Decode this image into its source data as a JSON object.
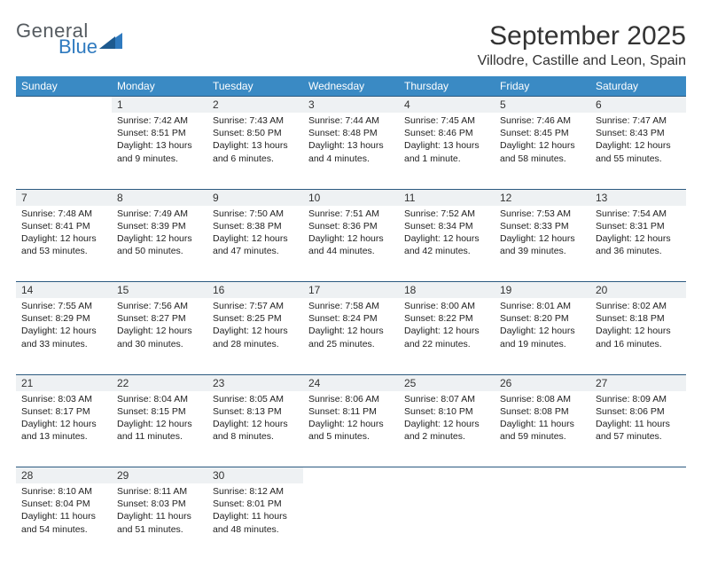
{
  "logo": {
    "text1": "General",
    "text2": "Blue"
  },
  "title": "September 2025",
  "location": "Villodre, Castille and Leon, Spain",
  "colors": {
    "header_bg": "#3a8ac4",
    "header_text": "#ffffff",
    "daynum_bg": "#eef1f3",
    "row_border": "#2c5a80",
    "logo_gray": "#555b60",
    "logo_blue": "#2f7abf",
    "text": "#222222",
    "background": "#ffffff"
  },
  "weekdays": [
    "Sunday",
    "Monday",
    "Tuesday",
    "Wednesday",
    "Thursday",
    "Friday",
    "Saturday"
  ],
  "weeks": [
    {
      "daynums": [
        "",
        "1",
        "2",
        "3",
        "4",
        "5",
        "6"
      ],
      "cells": [
        {
          "sunrise": "",
          "sunset": "",
          "daylight": ""
        },
        {
          "sunrise": "Sunrise: 7:42 AM",
          "sunset": "Sunset: 8:51 PM",
          "daylight": "Daylight: 13 hours and 9 minutes."
        },
        {
          "sunrise": "Sunrise: 7:43 AM",
          "sunset": "Sunset: 8:50 PM",
          "daylight": "Daylight: 13 hours and 6 minutes."
        },
        {
          "sunrise": "Sunrise: 7:44 AM",
          "sunset": "Sunset: 8:48 PM",
          "daylight": "Daylight: 13 hours and 4 minutes."
        },
        {
          "sunrise": "Sunrise: 7:45 AM",
          "sunset": "Sunset: 8:46 PM",
          "daylight": "Daylight: 13 hours and 1 minute."
        },
        {
          "sunrise": "Sunrise: 7:46 AM",
          "sunset": "Sunset: 8:45 PM",
          "daylight": "Daylight: 12 hours and 58 minutes."
        },
        {
          "sunrise": "Sunrise: 7:47 AM",
          "sunset": "Sunset: 8:43 PM",
          "daylight": "Daylight: 12 hours and 55 minutes."
        }
      ]
    },
    {
      "daynums": [
        "7",
        "8",
        "9",
        "10",
        "11",
        "12",
        "13"
      ],
      "cells": [
        {
          "sunrise": "Sunrise: 7:48 AM",
          "sunset": "Sunset: 8:41 PM",
          "daylight": "Daylight: 12 hours and 53 minutes."
        },
        {
          "sunrise": "Sunrise: 7:49 AM",
          "sunset": "Sunset: 8:39 PM",
          "daylight": "Daylight: 12 hours and 50 minutes."
        },
        {
          "sunrise": "Sunrise: 7:50 AM",
          "sunset": "Sunset: 8:38 PM",
          "daylight": "Daylight: 12 hours and 47 minutes."
        },
        {
          "sunrise": "Sunrise: 7:51 AM",
          "sunset": "Sunset: 8:36 PM",
          "daylight": "Daylight: 12 hours and 44 minutes."
        },
        {
          "sunrise": "Sunrise: 7:52 AM",
          "sunset": "Sunset: 8:34 PM",
          "daylight": "Daylight: 12 hours and 42 minutes."
        },
        {
          "sunrise": "Sunrise: 7:53 AM",
          "sunset": "Sunset: 8:33 PM",
          "daylight": "Daylight: 12 hours and 39 minutes."
        },
        {
          "sunrise": "Sunrise: 7:54 AM",
          "sunset": "Sunset: 8:31 PM",
          "daylight": "Daylight: 12 hours and 36 minutes."
        }
      ]
    },
    {
      "daynums": [
        "14",
        "15",
        "16",
        "17",
        "18",
        "19",
        "20"
      ],
      "cells": [
        {
          "sunrise": "Sunrise: 7:55 AM",
          "sunset": "Sunset: 8:29 PM",
          "daylight": "Daylight: 12 hours and 33 minutes."
        },
        {
          "sunrise": "Sunrise: 7:56 AM",
          "sunset": "Sunset: 8:27 PM",
          "daylight": "Daylight: 12 hours and 30 minutes."
        },
        {
          "sunrise": "Sunrise: 7:57 AM",
          "sunset": "Sunset: 8:25 PM",
          "daylight": "Daylight: 12 hours and 28 minutes."
        },
        {
          "sunrise": "Sunrise: 7:58 AM",
          "sunset": "Sunset: 8:24 PM",
          "daylight": "Daylight: 12 hours and 25 minutes."
        },
        {
          "sunrise": "Sunrise: 8:00 AM",
          "sunset": "Sunset: 8:22 PM",
          "daylight": "Daylight: 12 hours and 22 minutes."
        },
        {
          "sunrise": "Sunrise: 8:01 AM",
          "sunset": "Sunset: 8:20 PM",
          "daylight": "Daylight: 12 hours and 19 minutes."
        },
        {
          "sunrise": "Sunrise: 8:02 AM",
          "sunset": "Sunset: 8:18 PM",
          "daylight": "Daylight: 12 hours and 16 minutes."
        }
      ]
    },
    {
      "daynums": [
        "21",
        "22",
        "23",
        "24",
        "25",
        "26",
        "27"
      ],
      "cells": [
        {
          "sunrise": "Sunrise: 8:03 AM",
          "sunset": "Sunset: 8:17 PM",
          "daylight": "Daylight: 12 hours and 13 minutes."
        },
        {
          "sunrise": "Sunrise: 8:04 AM",
          "sunset": "Sunset: 8:15 PM",
          "daylight": "Daylight: 12 hours and 11 minutes."
        },
        {
          "sunrise": "Sunrise: 8:05 AM",
          "sunset": "Sunset: 8:13 PM",
          "daylight": "Daylight: 12 hours and 8 minutes."
        },
        {
          "sunrise": "Sunrise: 8:06 AM",
          "sunset": "Sunset: 8:11 PM",
          "daylight": "Daylight: 12 hours and 5 minutes."
        },
        {
          "sunrise": "Sunrise: 8:07 AM",
          "sunset": "Sunset: 8:10 PM",
          "daylight": "Daylight: 12 hours and 2 minutes."
        },
        {
          "sunrise": "Sunrise: 8:08 AM",
          "sunset": "Sunset: 8:08 PM",
          "daylight": "Daylight: 11 hours and 59 minutes."
        },
        {
          "sunrise": "Sunrise: 8:09 AM",
          "sunset": "Sunset: 8:06 PM",
          "daylight": "Daylight: 11 hours and 57 minutes."
        }
      ]
    },
    {
      "daynums": [
        "28",
        "29",
        "30",
        "",
        "",
        "",
        ""
      ],
      "cells": [
        {
          "sunrise": "Sunrise: 8:10 AM",
          "sunset": "Sunset: 8:04 PM",
          "daylight": "Daylight: 11 hours and 54 minutes."
        },
        {
          "sunrise": "Sunrise: 8:11 AM",
          "sunset": "Sunset: 8:03 PM",
          "daylight": "Daylight: 11 hours and 51 minutes."
        },
        {
          "sunrise": "Sunrise: 8:12 AM",
          "sunset": "Sunset: 8:01 PM",
          "daylight": "Daylight: 11 hours and 48 minutes."
        },
        {
          "sunrise": "",
          "sunset": "",
          "daylight": ""
        },
        {
          "sunrise": "",
          "sunset": "",
          "daylight": ""
        },
        {
          "sunrise": "",
          "sunset": "",
          "daylight": ""
        },
        {
          "sunrise": "",
          "sunset": "",
          "daylight": ""
        }
      ]
    }
  ]
}
